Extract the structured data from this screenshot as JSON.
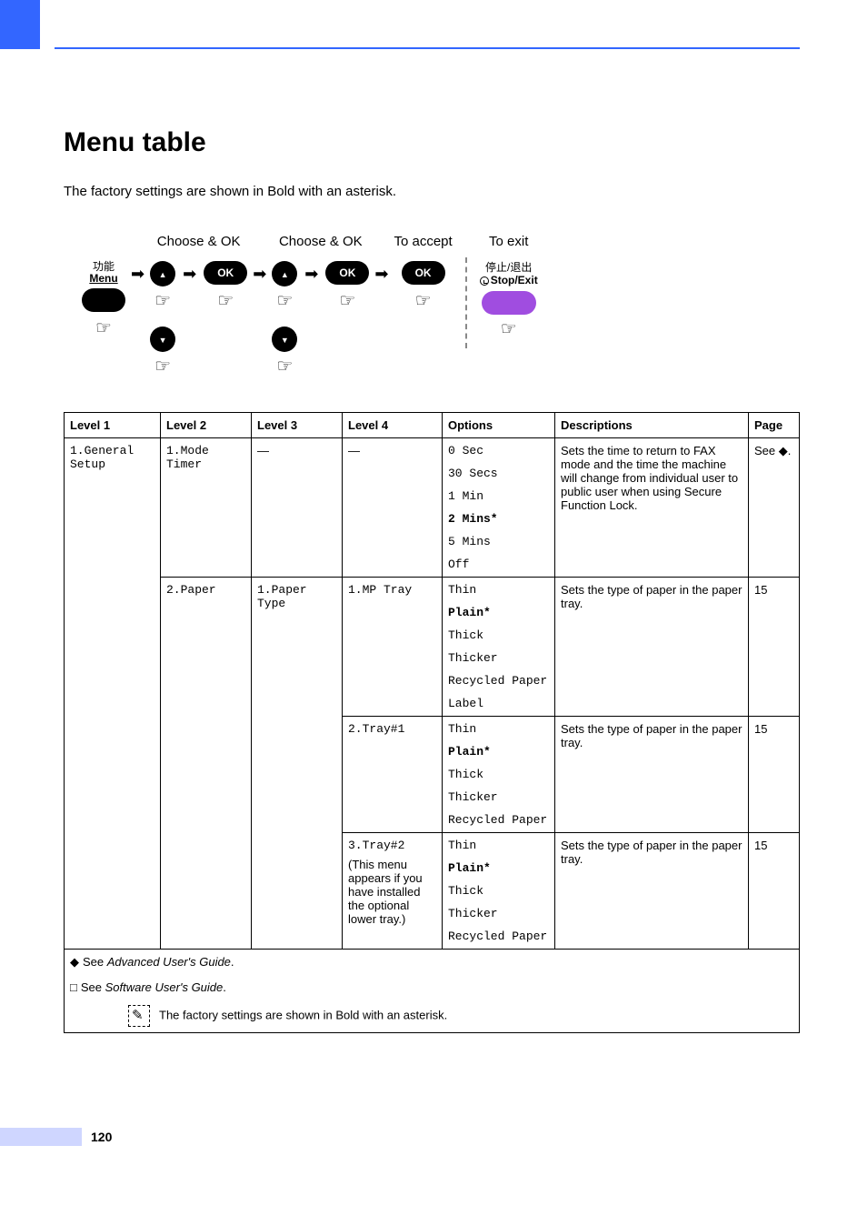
{
  "colors": {
    "accent": "#3366ff",
    "sidebar": "#3366ff",
    "page_band": "#cfd6ff",
    "stop_button": "#a04de0",
    "text": "#000000",
    "background": "#ffffff",
    "border": "#000000"
  },
  "heading": "Menu table",
  "intro": "The factory settings are shown in Bold with an asterisk.",
  "flow": {
    "choose_ok": "Choose & OK",
    "to_accept": "To accept",
    "to_exit": "To exit",
    "menu_cn": "功能",
    "menu_en": "Menu",
    "ok": "OK",
    "stopexit_cn": "停止/退出",
    "stopexit_en": "Stop/Exit"
  },
  "table": {
    "headers": {
      "l1": "Level 1",
      "l2": "Level 2",
      "l3": "Level 3",
      "l4": "Level 4",
      "options": "Options",
      "desc": "Descriptions",
      "page": "Page"
    },
    "rows": [
      {
        "l1": "1.General Setup",
        "l2": "1.Mode Timer",
        "l3": "—",
        "l4": "—",
        "options": [
          {
            "text": "0 Sec",
            "bold": false
          },
          {
            "text": "30 Secs",
            "bold": false
          },
          {
            "text": "1 Min",
            "bold": false
          },
          {
            "text": "2 Mins*",
            "bold": true
          },
          {
            "text": "5 Mins",
            "bold": false
          },
          {
            "text": "Off",
            "bold": false
          }
        ],
        "desc": "Sets the time to return to FAX mode and the time the machine will change from individual user to public user when using Secure Function Lock.",
        "page": "See ◆."
      },
      {
        "l2": "2.Paper",
        "l3": "1.Paper Type",
        "l4": "1.MP Tray",
        "options": [
          {
            "text": "Thin",
            "bold": false
          },
          {
            "text": "Plain*",
            "bold": true
          },
          {
            "text": "Thick",
            "bold": false
          },
          {
            "text": "Thicker",
            "bold": false
          },
          {
            "text": "Recycled Paper",
            "bold": false
          },
          {
            "text": "Label",
            "bold": false
          }
        ],
        "desc": "Sets the type of paper in the paper tray.",
        "page": "15"
      },
      {
        "l4": "2.Tray#1",
        "options": [
          {
            "text": "Thin",
            "bold": false
          },
          {
            "text": "Plain*",
            "bold": true
          },
          {
            "text": "Thick",
            "bold": false
          },
          {
            "text": "Thicker",
            "bold": false
          },
          {
            "text": "Recycled Paper",
            "bold": false
          }
        ],
        "desc": "Sets the type of paper in the paper tray.",
        "page": "15"
      },
      {
        "l4": "3.Tray#2",
        "l4_note": "(This menu appears if you have installed the optional lower tray.)",
        "options": [
          {
            "text": "Thin",
            "bold": false
          },
          {
            "text": "Plain*",
            "bold": true
          },
          {
            "text": "Thick",
            "bold": false
          },
          {
            "text": "Thicker",
            "bold": false
          },
          {
            "text": "Recycled Paper",
            "bold": false
          }
        ],
        "desc": "Sets the type of paper in the paper tray.",
        "page": "15"
      }
    ],
    "footnotes": {
      "adv": "See Advanced User's Guide.",
      "sw": "See Software User's Guide.",
      "factory": "The factory settings are shown in Bold with an asterisk."
    }
  },
  "page_number": "120"
}
